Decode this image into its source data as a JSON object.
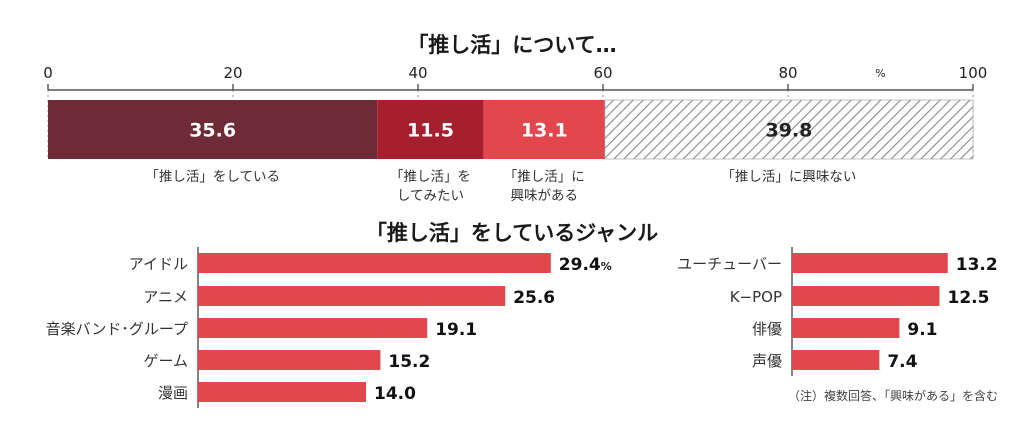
{
  "chart_data": [
    {
      "type": "bar",
      "orientation": "horizontal-stacked",
      "title": "「推し活」について…",
      "axis": {
        "ticks": [
          "0",
          "20",
          "40",
          "60",
          "80",
          "100"
        ],
        "unit": "%",
        "xlim": [
          0,
          100
        ]
      },
      "grid": true,
      "segments": [
        {
          "value": 35.6,
          "value_label": "35.6",
          "label": "「推し活」をしている",
          "label_lines": [
            "「推し活」をしている"
          ],
          "color": "#6e2b35"
        },
        {
          "value": 11.5,
          "value_label": "11.5",
          "label": "「推し活」をしてみたい",
          "label_lines": [
            "「推し活」を",
            "してみたい"
          ],
          "color": "#a51f2f"
        },
        {
          "value": 13.1,
          "value_label": "13.1",
          "label": "「推し活」に興味がある",
          "label_lines": [
            "「推し活」に",
            "興味がある"
          ],
          "color": "#e1474c"
        },
        {
          "value": 39.8,
          "value_label": "39.8",
          "label": "「推し活」に興味ない",
          "label_lines": [
            "「推し活」に興味ない"
          ],
          "color": "hatch"
        }
      ]
    },
    {
      "type": "bar",
      "orientation": "horizontal",
      "title": "「推し活」をしているジャンル",
      "bar_color": "#e1474c",
      "panels": [
        {
          "categories": [
            "アイドル",
            "アニメ",
            "音楽バンド･グループ",
            "ゲーム",
            "漫画"
          ],
          "values": [
            29.4,
            25.6,
            19.1,
            15.2,
            14.0
          ],
          "value_labels": [
            "29.4",
            "25.6",
            "19.1",
            "15.2",
            "14.0"
          ],
          "unit_on_first": "%"
        },
        {
          "categories": [
            "ユーチューバー",
            "K−POP",
            "俳優",
            "声優"
          ],
          "values": [
            13.2,
            12.5,
            9.1,
            7.4
          ],
          "value_labels": [
            "13.2",
            "12.5",
            "9.1",
            "7.4"
          ]
        }
      ],
      "note": "（注）複数回答、「興味がある」を含む"
    }
  ]
}
